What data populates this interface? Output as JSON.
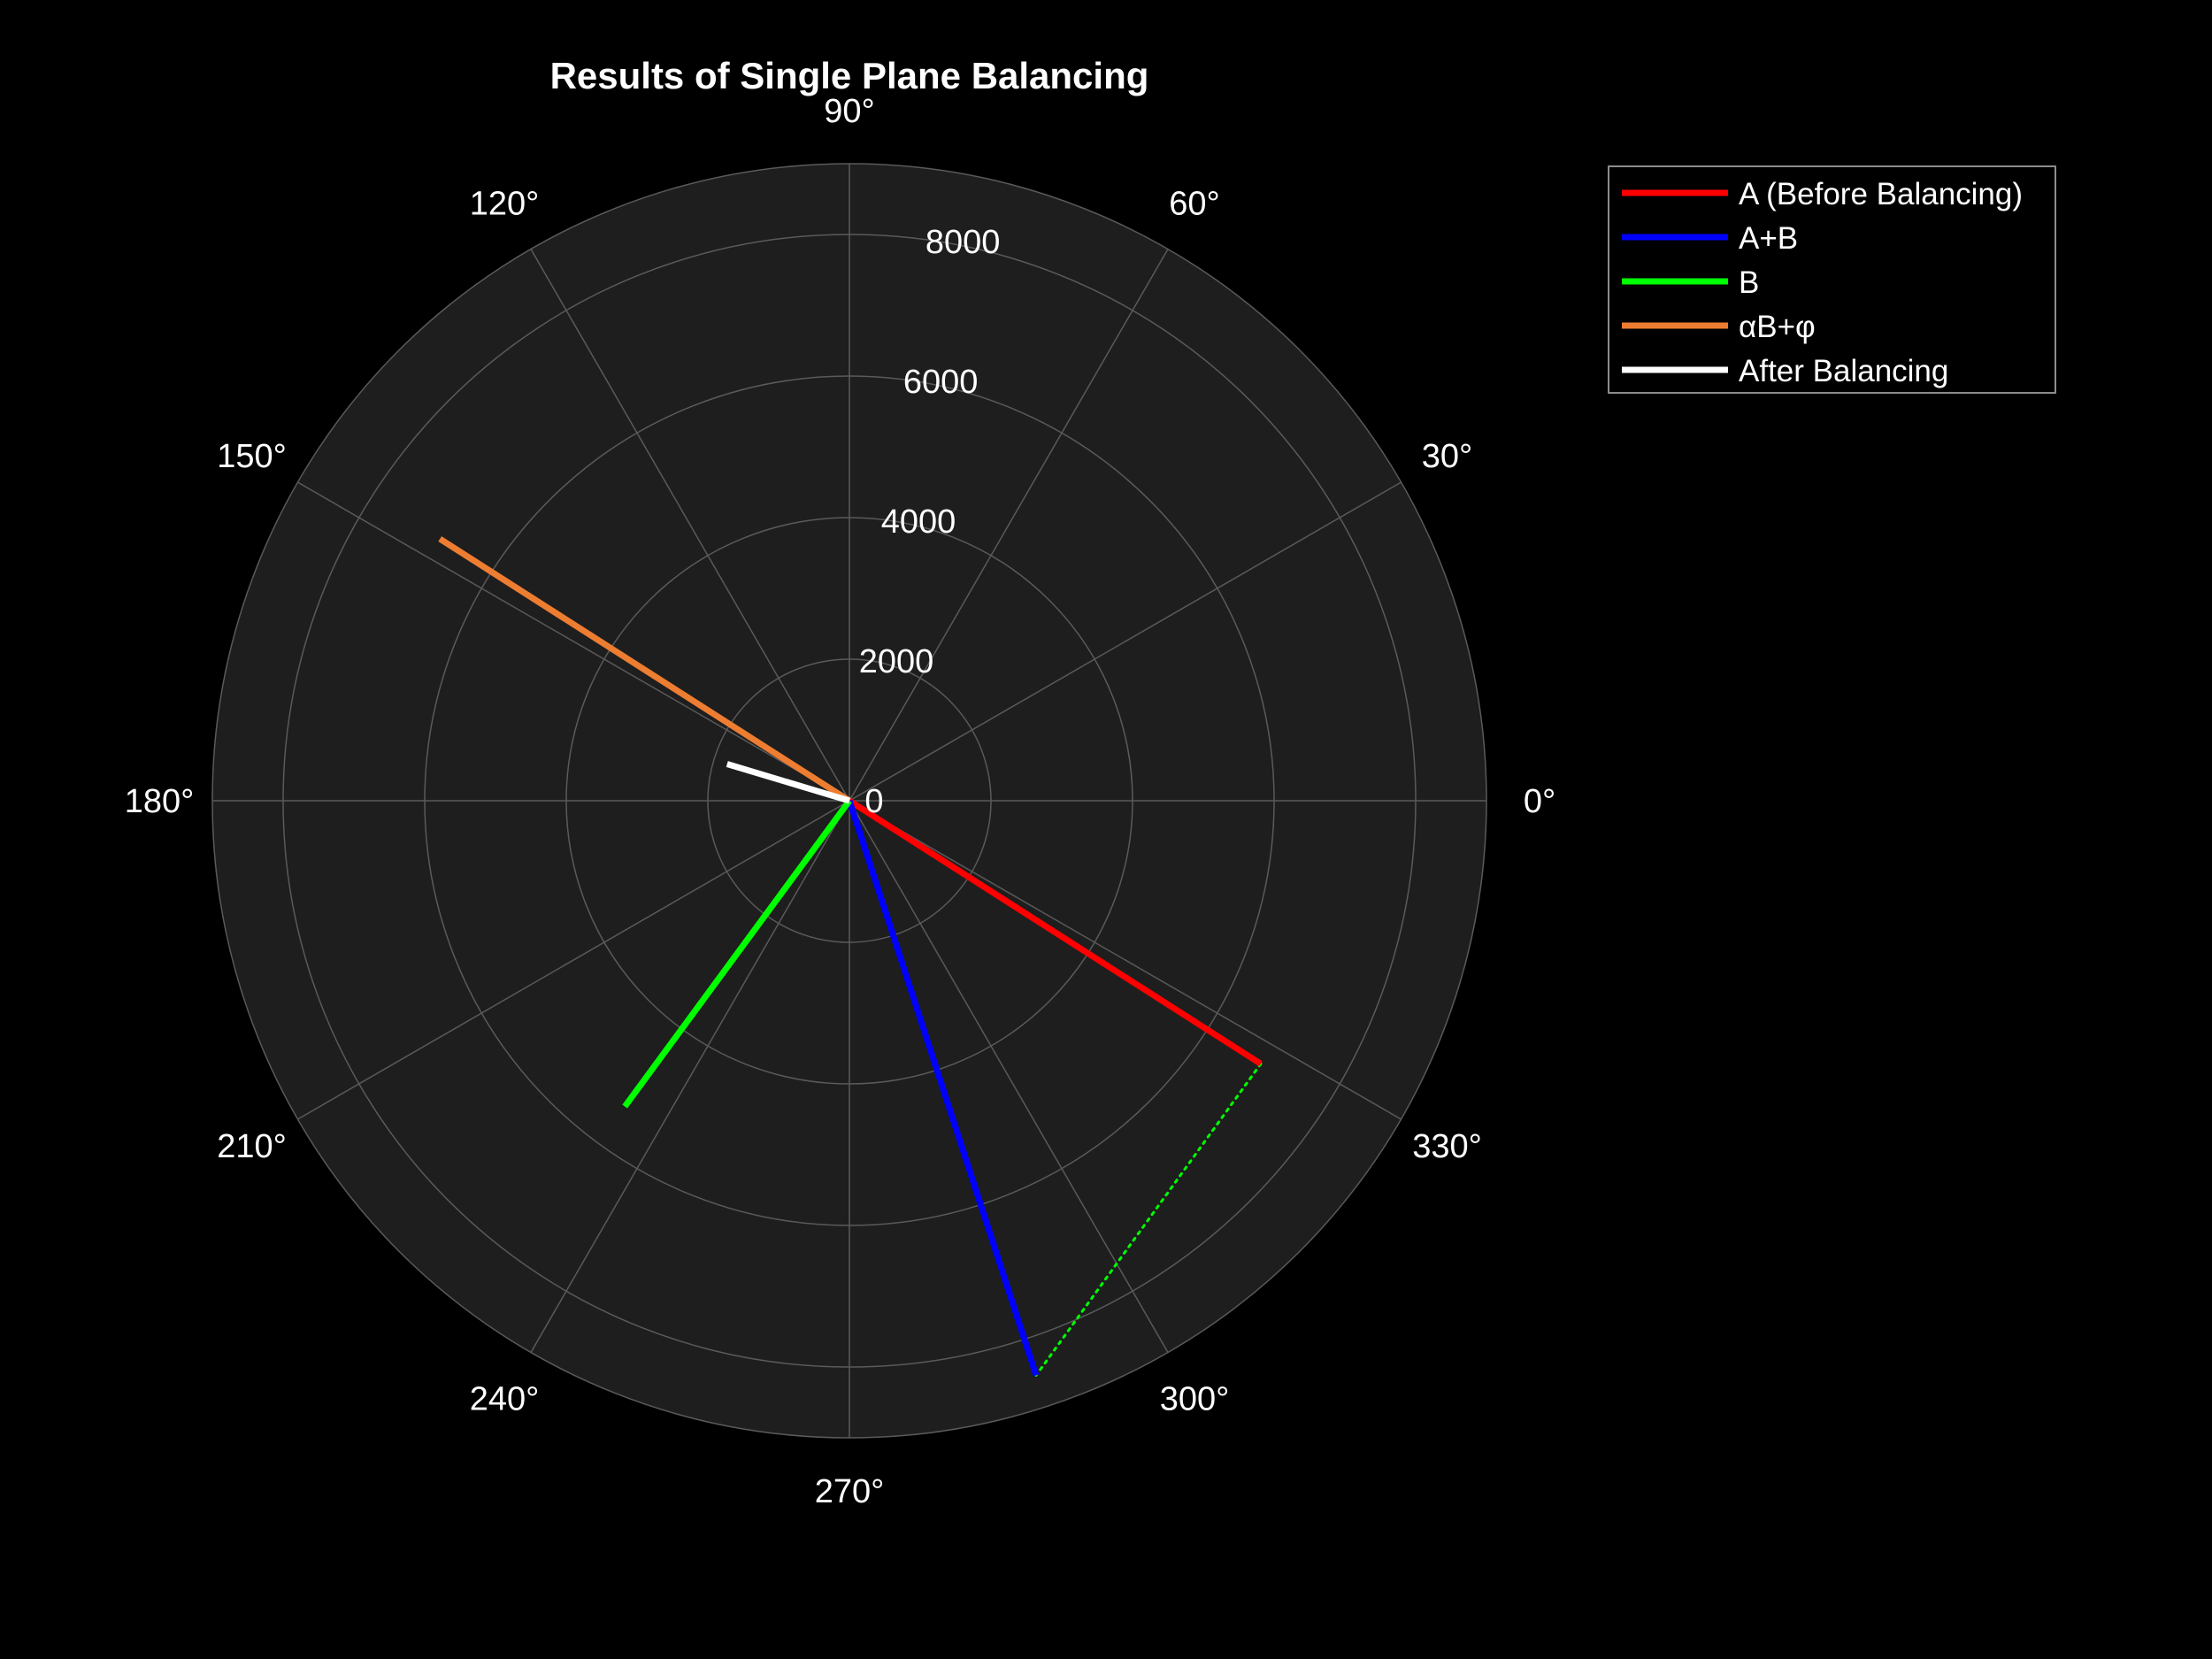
{
  "chart_data": {
    "type": "polar",
    "title": "Results of Single Plane Balancing",
    "angle_ticks": [
      "0°",
      "30°",
      "60°",
      "90°",
      "120°",
      "150°",
      "180°",
      "210°",
      "240°",
      "270°",
      "300°",
      "330°"
    ],
    "radial_ticks": [
      {
        "value": 0,
        "label": "0"
      },
      {
        "value": 2000,
        "label": "2000"
      },
      {
        "value": 4000,
        "label": "4000"
      },
      {
        "value": 6000,
        "label": "6000"
      },
      {
        "value": 8000,
        "label": "8000"
      }
    ],
    "rlim": [
      0,
      9000
    ],
    "grid": true,
    "legend_position": "top-right",
    "series": [
      {
        "name": "A (Before Balancing)",
        "color": "#ff0000",
        "angle_deg": 327.4,
        "magnitude": 6898,
        "style": "solid"
      },
      {
        "name": "A+B",
        "color": "#0000ff",
        "angle_deg": 288.0,
        "magnitude": 8536,
        "style": "solid"
      },
      {
        "name": "B",
        "color": "#00ff00",
        "angle_deg": 233.7,
        "magnitude": 5359,
        "style": "solid"
      },
      {
        "name": "αB+φ",
        "color": "#ed7d31",
        "angle_deg": 147.4,
        "magnitude": 6867,
        "style": "solid"
      },
      {
        "name": "After Balancing",
        "color": "#ffffff",
        "angle_deg": 163.3,
        "magnitude": 1804,
        "style": "solid"
      }
    ],
    "connector": {
      "color": "#00ff00",
      "style": "dotted",
      "from_series": 0,
      "to_series": 1
    }
  },
  "colors": {
    "figure_background": "#000000",
    "axes_background": "#1e1e1e",
    "grid": "#5a5a5a",
    "text": "#ffffff"
  }
}
